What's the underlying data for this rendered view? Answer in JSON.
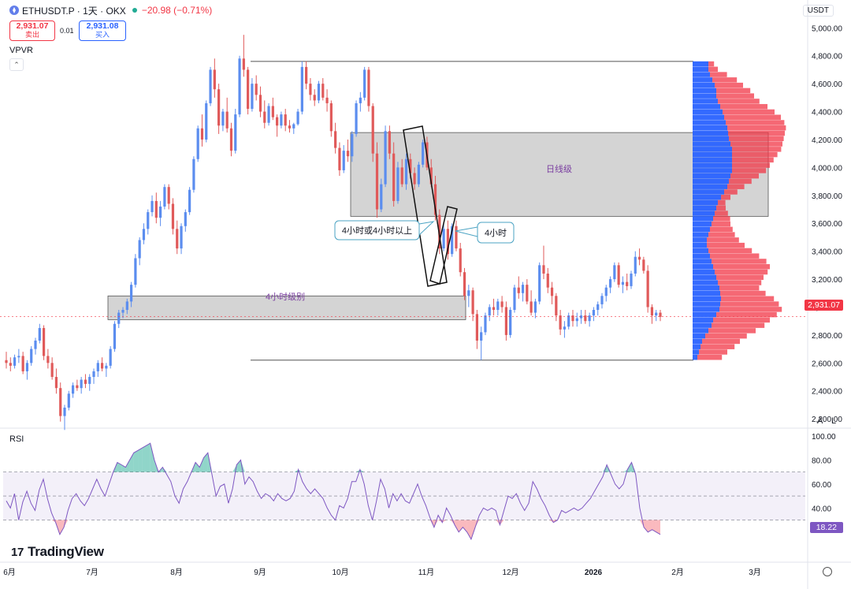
{
  "header": {
    "symbol": "ETHUSDT.P · 1天 · OKX",
    "change": "−20.98 (−0.71%)",
    "sell_price": "2,931.07",
    "sell_label": "卖出",
    "spread": "0.01",
    "buy_price": "2,931.08",
    "buy_label": "买入"
  },
  "indicator_label": "VPVR",
  "collapse_icon": "chevron-up-icon",
  "currency": "USDT",
  "colors": {
    "up": "#5b8def",
    "down": "#e05a5a",
    "zone": "#c8c8c8",
    "vp_up": "#2962ff",
    "vp_down": "#f23645",
    "rsi_line": "#7e57c2",
    "last_price": "#f23645",
    "rsi_value_bg": "#7e57c2"
  },
  "price_axis": [
    "5,000.00",
    "4,800.00",
    "4,600.00",
    "4,400.00",
    "4,200.00",
    "4,000.00",
    "3,800.00",
    "3,600.00",
    "3,400.00",
    "3,200.00",
    "3,000.00",
    "2,800.00",
    "2,600.00",
    "2,400.00",
    "2,200.00"
  ],
  "last_price_label": "2,931.07",
  "axis_buttons": {
    "auto": "A",
    "log": "L"
  },
  "annotations": {
    "daily_zone": "日线级",
    "h4_zone": "4小时级别",
    "callout_left": "4小时或4小时以上",
    "callout_right": "4小时"
  },
  "rsi": {
    "label": "RSI",
    "axis": [
      "100.00",
      "80.00",
      "60.00",
      "40.00"
    ],
    "value": "18.22"
  },
  "brand": "TradingView",
  "time_axis": [
    "6月",
    "7月",
    "8月",
    "9月",
    "10月",
    "11月",
    "12月",
    "2026",
    "2月",
    "3月"
  ],
  "chart_data": {
    "type": "candlestick",
    "symbol": "ETHUSDT.P",
    "interval": "1天",
    "exchange": "OKX",
    "ylim": [
      2100,
      5100
    ],
    "candles": [
      [
        2620,
        2680,
        2560,
        2600
      ],
      [
        2600,
        2640,
        2540,
        2580
      ],
      [
        2580,
        2660,
        2560,
        2640
      ],
      [
        2640,
        2700,
        2600,
        2650
      ],
      [
        2650,
        2680,
        2520,
        2540
      ],
      [
        2540,
        2620,
        2480,
        2600
      ],
      [
        2600,
        2720,
        2580,
        2700
      ],
      [
        2700,
        2780,
        2660,
        2760
      ],
      [
        2760,
        2880,
        2740,
        2850
      ],
      [
        2850,
        2870,
        2620,
        2650
      ],
      [
        2650,
        2700,
        2560,
        2600
      ],
      [
        2600,
        2640,
        2480,
        2500
      ],
      [
        2500,
        2560,
        2380,
        2420
      ],
      [
        2420,
        2460,
        2180,
        2220
      ],
      [
        2220,
        2300,
        2120,
        2280
      ],
      [
        2280,
        2400,
        2260,
        2380
      ],
      [
        2380,
        2460,
        2350,
        2440
      ],
      [
        2440,
        2480,
        2400,
        2420
      ],
      [
        2420,
        2500,
        2380,
        2480
      ],
      [
        2480,
        2520,
        2420,
        2450
      ],
      [
        2450,
        2520,
        2400,
        2500
      ],
      [
        2500,
        2560,
        2450,
        2540
      ],
      [
        2540,
        2620,
        2500,
        2600
      ],
      [
        2600,
        2640,
        2540,
        2560
      ],
      [
        2560,
        2600,
        2500,
        2580
      ],
      [
        2580,
        2720,
        2560,
        2700
      ],
      [
        2700,
        2900,
        2680,
        2880
      ],
      [
        2880,
        2980,
        2850,
        2960
      ],
      [
        2960,
        3000,
        2920,
        2980
      ],
      [
        2980,
        3060,
        2950,
        3040
      ],
      [
        3040,
        3180,
        3000,
        3160
      ],
      [
        3160,
        3380,
        3140,
        3350
      ],
      [
        3350,
        3500,
        3300,
        3480
      ],
      [
        3480,
        3600,
        3450,
        3560
      ],
      [
        3560,
        3700,
        3520,
        3680
      ],
      [
        3680,
        3800,
        3650,
        3760
      ],
      [
        3760,
        3820,
        3600,
        3640
      ],
      [
        3640,
        3760,
        3580,
        3720
      ],
      [
        3720,
        3880,
        3700,
        3860
      ],
      [
        3860,
        3880,
        3700,
        3740
      ],
      [
        3740,
        3780,
        3520,
        3560
      ],
      [
        3560,
        3620,
        3380,
        3420
      ],
      [
        3420,
        3600,
        3380,
        3580
      ],
      [
        3580,
        3700,
        3540,
        3680
      ],
      [
        3680,
        3860,
        3660,
        3840
      ],
      [
        3840,
        4080,
        3820,
        4060
      ],
      [
        4060,
        4300,
        4040,
        4280
      ],
      [
        4280,
        4380,
        4150,
        4200
      ],
      [
        4200,
        4480,
        4180,
        4460
      ],
      [
        4460,
        4720,
        4440,
        4700
      ],
      [
        4700,
        4780,
        4500,
        4560
      ],
      [
        4560,
        4600,
        4240,
        4300
      ],
      [
        4300,
        4420,
        4260,
        4400
      ],
      [
        4400,
        4500,
        4250,
        4280
      ],
      [
        4280,
        4320,
        4080,
        4120
      ],
      [
        4120,
        4420,
        4100,
        4380
      ],
      [
        4380,
        4800,
        4360,
        4780
      ],
      [
        4780,
        4950,
        4650,
        4700
      ],
      [
        4700,
        4720,
        4380,
        4420
      ],
      [
        4420,
        4640,
        4400,
        4600
      ],
      [
        4600,
        4660,
        4480,
        4520
      ],
      [
        4520,
        4580,
        4360,
        4400
      ],
      [
        4400,
        4480,
        4280,
        4320
      ],
      [
        4320,
        4460,
        4300,
        4440
      ],
      [
        4440,
        4500,
        4340,
        4360
      ],
      [
        4360,
        4380,
        4220,
        4300
      ],
      [
        4300,
        4400,
        4280,
        4380
      ],
      [
        4380,
        4420,
        4260,
        4300
      ],
      [
        4300,
        4340,
        4250,
        4280
      ],
      [
        4280,
        4320,
        4240,
        4310
      ],
      [
        4310,
        4420,
        4300,
        4400
      ],
      [
        4400,
        4760,
        4380,
        4720
      ],
      [
        4720,
        4760,
        4560,
        4600
      ],
      [
        4600,
        4640,
        4480,
        4520
      ],
      [
        4520,
        4560,
        4440,
        4480
      ],
      [
        4480,
        4620,
        4460,
        4600
      ],
      [
        4600,
        4640,
        4480,
        4500
      ],
      [
        4500,
        4560,
        4400,
        4460
      ],
      [
        4460,
        4480,
        4220,
        4260
      ],
      [
        4260,
        4320,
        4100,
        4140
      ],
      [
        4140,
        4180,
        3940,
        3980
      ],
      [
        3980,
        4160,
        3960,
        4120
      ],
      [
        4120,
        4200,
        4040,
        4080
      ],
      [
        4080,
        4260,
        4040,
        4240
      ],
      [
        4240,
        4480,
        4220,
        4460
      ],
      [
        4460,
        4540,
        4400,
        4500
      ],
      [
        4500,
        4720,
        4480,
        4700
      ],
      [
        4700,
        4720,
        4400,
        4440
      ],
      [
        4440,
        4460,
        4040,
        4100
      ],
      [
        4100,
        4180,
        3640,
        3700
      ],
      [
        3700,
        3920,
        3680,
        3880
      ],
      [
        3880,
        4300,
        3860,
        4260
      ],
      [
        4260,
        4300,
        4060,
        4100
      ],
      [
        4100,
        4180,
        3720,
        3760
      ],
      [
        3760,
        4040,
        3740,
        4000
      ],
      [
        4000,
        4060,
        3860,
        3880
      ],
      [
        3880,
        4100,
        3840,
        4060
      ],
      [
        4060,
        4100,
        3920,
        3960
      ],
      [
        3960,
        4000,
        3840,
        3880
      ],
      [
        3880,
        4040,
        3860,
        4020
      ],
      [
        4020,
        4200,
        4000,
        4180
      ],
      [
        4180,
        4220,
        3980,
        4000
      ],
      [
        4000,
        4060,
        3860,
        3880
      ],
      [
        3880,
        3940,
        3620,
        3660
      ],
      [
        3660,
        3700,
        3380,
        3420
      ],
      [
        3420,
        3600,
        3400,
        3560
      ],
      [
        3560,
        3620,
        3340,
        3380
      ],
      [
        3380,
        3600,
        3360,
        3580
      ],
      [
        3580,
        3620,
        3400,
        3420
      ],
      [
        3420,
        3460,
        3220,
        3250
      ],
      [
        3250,
        3280,
        3050,
        3080
      ],
      [
        3080,
        3160,
        3000,
        3120
      ],
      [
        3120,
        3140,
        2900,
        2950
      ],
      [
        2950,
        2980,
        2700,
        2760
      ],
      [
        2760,
        2860,
        2620,
        2820
      ],
      [
        2820,
        2960,
        2800,
        2940
      ],
      [
        2940,
        3020,
        2900,
        3000
      ],
      [
        3000,
        3060,
        2940,
        2980
      ],
      [
        2980,
        3060,
        2940,
        3040
      ],
      [
        3040,
        3080,
        2960,
        3000
      ],
      [
        3000,
        3040,
        2760,
        2800
      ],
      [
        2800,
        3000,
        2780,
        2980
      ],
      [
        2980,
        3160,
        2960,
        3140
      ],
      [
        3140,
        3220,
        3060,
        3100
      ],
      [
        3100,
        3180,
        3040,
        3160
      ],
      [
        3160,
        3200,
        3020,
        3040
      ],
      [
        3040,
        3120,
        2940,
        2960
      ],
      [
        2960,
        3060,
        2920,
        3040
      ],
      [
        3040,
        3320,
        3020,
        3300
      ],
      [
        3300,
        3440,
        3200,
        3240
      ],
      [
        3240,
        3280,
        3100,
        3140
      ],
      [
        3140,
        3180,
        3020,
        3080
      ],
      [
        3080,
        3100,
        2900,
        2940
      ],
      [
        2940,
        2980,
        2800,
        2840
      ],
      [
        2840,
        2900,
        2780,
        2860
      ],
      [
        2860,
        2960,
        2840,
        2940
      ],
      [
        2940,
        2980,
        2860,
        2900
      ],
      [
        2900,
        2960,
        2860,
        2920
      ],
      [
        2920,
        2980,
        2880,
        2940
      ],
      [
        2940,
        2980,
        2880,
        2900
      ],
      [
        2900,
        2960,
        2860,
        2940
      ],
      [
        2940,
        3000,
        2900,
        2980
      ],
      [
        2980,
        3040,
        2940,
        3020
      ],
      [
        3020,
        3100,
        2990,
        3080
      ],
      [
        3080,
        3160,
        3040,
        3140
      ],
      [
        3140,
        3220,
        3100,
        3200
      ],
      [
        3200,
        3320,
        3180,
        3300
      ],
      [
        3300,
        3320,
        3140,
        3160
      ],
      [
        3160,
        3220,
        3100,
        3180
      ],
      [
        3180,
        3240,
        3120,
        3150
      ],
      [
        3150,
        3260,
        3130,
        3240
      ],
      [
        3240,
        3400,
        3220,
        3360
      ],
      [
        3360,
        3420,
        3300,
        3340
      ],
      [
        3340,
        3360,
        3240,
        3260
      ],
      [
        3260,
        3300,
        2960,
        3000
      ],
      [
        3000,
        3020,
        2880,
        2940
      ],
      [
        2940,
        2980,
        2900,
        2960
      ],
      [
        2960,
        2980,
        2900,
        2930
      ]
    ],
    "volume_profile": {
      "price_range": [
        2620,
        4760
      ],
      "up_volume": [
        20,
        20,
        22,
        25,
        28,
        30,
        30,
        32,
        35,
        38,
        40,
        42,
        44,
        45,
        46,
        48,
        50,
        50,
        50,
        50,
        50,
        48,
        46,
        44,
        40,
        36,
        32,
        30,
        28,
        26,
        24,
        22,
        20,
        18,
        18,
        20,
        22,
        24,
        26,
        28,
        30,
        32,
        34,
        35,
        36,
        35,
        34,
        30,
        26,
        24,
        20,
        16,
        12,
        10,
        8,
        6
      ],
      "down_volume": [
        6,
        10,
        18,
        26,
        30,
        36,
        40,
        44,
        50,
        55,
        60,
        62,
        62,
        60,
        58,
        55,
        52,
        48,
        44,
        40,
        36,
        30,
        24,
        18,
        14,
        10,
        8,
        10,
        14,
        18,
        20,
        24,
        28,
        34,
        40,
        46,
        52,
        58,
        60,
        56,
        50,
        46,
        42,
        48,
        56,
        62,
        66,
        64,
        60,
        56,
        50,
        44,
        40,
        36,
        30,
        26
      ]
    },
    "zones": [
      {
        "label": "日线级",
        "price_top": 4250,
        "price_bottom": 3650
      },
      {
        "label": "4小时级别",
        "price_top": 3080,
        "price_bottom": 2910
      }
    ],
    "horizontal_lines": [
      4760,
      2620
    ],
    "last_price": 2931.07,
    "rsi": {
      "period_levels": [
        70,
        50,
        30
      ],
      "ylim": [
        0,
        100
      ],
      "last": 18.22,
      "values": [
        46,
        40,
        52,
        30,
        45,
        54,
        44,
        38,
        55,
        64,
        48,
        36,
        28,
        18,
        24,
        38,
        48,
        52,
        46,
        42,
        48,
        56,
        64,
        56,
        50,
        60,
        70,
        78,
        76,
        74,
        80,
        86,
        88,
        90,
        92,
        94,
        80,
        70,
        74,
        68,
        62,
        50,
        44,
        56,
        62,
        70,
        78,
        74,
        82,
        86,
        68,
        50,
        58,
        60,
        44,
        56,
        76,
        80,
        60,
        66,
        62,
        54,
        48,
        52,
        50,
        46,
        52,
        48,
        46,
        48,
        54,
        72,
        62,
        56,
        52,
        56,
        52,
        48,
        40,
        34,
        30,
        42,
        40,
        48,
        62,
        62,
        72,
        60,
        42,
        30,
        46,
        64,
        56,
        40,
        52,
        46,
        52,
        46,
        44,
        52,
        60,
        50,
        42,
        32,
        24,
        34,
        28,
        40,
        34,
        26,
        20,
        24,
        20,
        14,
        24,
        34,
        40,
        38,
        40,
        38,
        26,
        38,
        50,
        48,
        52,
        44,
        38,
        44,
        62,
        56,
        48,
        42,
        34,
        28,
        30,
        38,
        36,
        38,
        40,
        38,
        40,
        44,
        48,
        54,
        60,
        66,
        76,
        68,
        60,
        56,
        60,
        72,
        78,
        68,
        40,
        24,
        20,
        22,
        20,
        18
      ]
    }
  }
}
